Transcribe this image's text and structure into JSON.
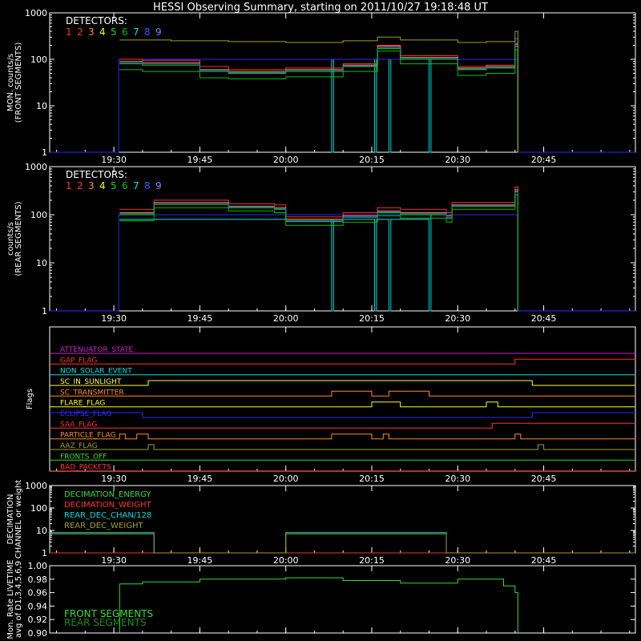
{
  "title": "HESSI Observing Summary, starting on 2011/10/27 19:18:48 UT",
  "colors": {
    "background": "#000000",
    "axes": "#ffffff",
    "det": [
      "#ff3030",
      "#ff3030",
      "#ff8c1a",
      "#ffff00",
      "#20d020",
      "#00c000",
      "#00e0e0",
      "#2060ff",
      "#8080ff"
    ],
    "front_segments": "#33dd33",
    "rear_segments": "#1c8c1c",
    "trace_green": "#33dd33",
    "trace_cyan": "#00dddd",
    "trace_blue": "#2a2aff",
    "trace_olive": "#a0a020"
  },
  "chart_data": [
    {
      "id": "front",
      "type": "line",
      "ylabel": [
        "MON. counts/s",
        "(FRONT SEGMENTS)"
      ],
      "ylog": true,
      "ylim": [
        1,
        1000
      ],
      "yticks": [
        "1",
        "10",
        "100",
        "1000"
      ],
      "xticks": [
        "19:30",
        "19:45",
        "20:00",
        "20:15",
        "20:30",
        "20:45"
      ],
      "xlim": [
        "19:18:48",
        "21:01"
      ],
      "legend_title": "DETECTORS:",
      "legend_digits": [
        "1",
        "2",
        "3",
        "4",
        "5",
        "6",
        "7",
        "8",
        "9"
      ],
      "series": [
        {
          "key": "d1",
          "color_index": 0,
          "x": [
            "19:31",
            "19:35",
            "19:45",
            "19:50",
            "20:00",
            "20:10",
            "20:16",
            "20:20",
            "20:30",
            "20:35",
            "20:40",
            "20:40:30"
          ],
          "y": [
            100,
            95,
            70,
            60,
            65,
            80,
            200,
            120,
            70,
            75,
            220,
            1
          ]
        },
        {
          "key": "d3",
          "color_index": 2,
          "x": [
            "19:31",
            "19:35",
            "19:45",
            "19:50",
            "20:00",
            "20:10",
            "20:16",
            "20:20",
            "20:30",
            "20:35",
            "20:40",
            "20:40:30"
          ],
          "y": [
            90,
            85,
            60,
            55,
            60,
            75,
            190,
            110,
            65,
            70,
            210,
            1
          ]
        },
        {
          "key": "d5",
          "color_index": 4,
          "x": [
            "19:31",
            "19:35",
            "19:45",
            "19:50",
            "20:00",
            "20:10",
            "20:16",
            "20:20",
            "20:30",
            "20:35",
            "20:40",
            "20:40:30"
          ],
          "y": [
            80,
            75,
            55,
            50,
            55,
            70,
            170,
            100,
            60,
            65,
            190,
            1
          ]
        },
        {
          "key": "d8",
          "color_index": 7,
          "x": [
            "19:31",
            "19:35",
            "19:45",
            "19:50",
            "20:00",
            "20:10",
            "20:16",
            "20:20",
            "20:30",
            "20:35",
            "20:40",
            "20:40:30"
          ],
          "y": [
            85,
            80,
            58,
            52,
            58,
            72,
            180,
            105,
            62,
            68,
            280,
            1
          ]
        },
        {
          "key": "d2",
          "color_index": 5,
          "x": [
            "19:31",
            "19:35",
            "19:45",
            "19:50",
            "20:00",
            "20:10",
            "20:16",
            "20:20",
            "20:30",
            "20:35",
            "20:40",
            "20:40:30"
          ],
          "y": [
            60,
            55,
            40,
            38,
            42,
            55,
            150,
            80,
            45,
            50,
            160,
            1
          ]
        },
        {
          "key": "total",
          "color": "trace_olive",
          "x": [
            "19:31",
            "19:40",
            "19:50",
            "20:00",
            "20:10",
            "20:16",
            "20:20",
            "20:30",
            "20:35",
            "20:40",
            "20:40:30"
          ],
          "y": [
            260,
            250,
            240,
            230,
            250,
            300,
            260,
            230,
            240,
            400,
            1
          ]
        }
      ],
      "dropouts": [
        {
          "color": "trace_cyan",
          "x": [
            "19:31",
            "20:08",
            "20:08",
            "20:08:20",
            "20:08:20",
            "20:15:30",
            "20:15:30",
            "20:15:50",
            "20:15:50",
            "20:18",
            "20:18",
            "20:18:20",
            "20:18:20",
            "20:25",
            "20:25",
            "20:25:20",
            "20:25:20",
            "20:40:30"
          ],
          "y": [
            100,
            100,
            1,
            1,
            100,
            100,
            1,
            1,
            100,
            100,
            1,
            1,
            100,
            100,
            1,
            1,
            100,
            1
          ]
        },
        {
          "color": "trace_blue",
          "x": [
            "19:18:48",
            "19:30:50",
            "19:30:50",
            "19:31",
            "20:40:30",
            "20:40:30",
            "21:01"
          ],
          "y": [
            1,
            1,
            100,
            100,
            100,
            1,
            1
          ]
        }
      ]
    },
    {
      "id": "rear",
      "type": "line",
      "ylabel": [
        "counts/s",
        "(REAR SEGMENTS)"
      ],
      "ylog": true,
      "ylim": [
        1,
        1000
      ],
      "yticks": [
        "1",
        "10",
        "100",
        "1000"
      ],
      "xticks": [
        "19:30",
        "19:45",
        "20:00",
        "20:15",
        "20:30",
        "20:45"
      ],
      "xlim": [
        "19:18:48",
        "21:01"
      ],
      "legend_title": "DETECTORS:",
      "legend_digits": [
        "1",
        "2",
        "3",
        "4",
        "5",
        "6",
        "7",
        "8",
        "9"
      ],
      "series": [
        {
          "key": "d1",
          "color_index": 0,
          "x": [
            "19:31",
            "19:36",
            "19:37",
            "19:50",
            "19:58",
            "20:00",
            "20:10",
            "20:16",
            "20:20",
            "20:28",
            "20:29",
            "20:35",
            "20:40",
            "20:40:30"
          ],
          "y": [
            130,
            130,
            200,
            170,
            160,
            90,
            110,
            140,
            130,
            110,
            180,
            180,
            380,
            1
          ]
        },
        {
          "key": "d3",
          "color_index": 2,
          "x": [
            "19:31",
            "19:36",
            "19:37",
            "19:50",
            "19:58",
            "20:00",
            "20:10",
            "20:16",
            "20:20",
            "20:28",
            "20:29",
            "20:35",
            "20:40",
            "20:40:30"
          ],
          "y": [
            110,
            110,
            180,
            150,
            140,
            80,
            95,
            120,
            110,
            95,
            160,
            160,
            330,
            1
          ]
        },
        {
          "key": "d5",
          "color_index": 4,
          "x": [
            "19:31",
            "19:36",
            "19:37",
            "19:50",
            "19:58",
            "20:00",
            "20:10",
            "20:16",
            "20:20",
            "20:28",
            "20:29",
            "20:35",
            "20:40",
            "20:40:30"
          ],
          "y": [
            100,
            100,
            165,
            140,
            130,
            72,
            88,
            110,
            100,
            85,
            150,
            150,
            300,
            1
          ]
        },
        {
          "key": "d8",
          "color_index": 7,
          "x": [
            "19:31",
            "19:36",
            "19:37",
            "19:50",
            "19:58",
            "20:00",
            "20:10",
            "20:16",
            "20:20",
            "20:28",
            "20:29",
            "20:35",
            "20:40",
            "20:40:30"
          ],
          "y": [
            105,
            105,
            170,
            145,
            135,
            75,
            90,
            115,
            105,
            88,
            155,
            155,
            310,
            1
          ]
        },
        {
          "key": "d2",
          "color_index": 5,
          "x": [
            "19:31",
            "19:36",
            "19:37",
            "19:50",
            "19:58",
            "20:00",
            "20:10",
            "20:16",
            "20:20",
            "20:28",
            "20:29",
            "20:35",
            "20:40",
            "20:40:30"
          ],
          "y": [
            75,
            75,
            140,
            120,
            110,
            60,
            70,
            95,
            85,
            70,
            130,
            130,
            260,
            1
          ]
        }
      ],
      "dropouts": [
        {
          "color": "trace_cyan",
          "x": [
            "19:31",
            "20:08",
            "20:08",
            "20:08:20",
            "20:08:20",
            "20:15:30",
            "20:15:30",
            "20:15:50",
            "20:15:50",
            "20:18",
            "20:18",
            "20:18:20",
            "20:18:20",
            "20:25",
            "20:25",
            "20:25:20",
            "20:25:20",
            "20:40:30"
          ],
          "y": [
            80,
            80,
            1,
            1,
            80,
            80,
            1,
            1,
            80,
            80,
            1,
            1,
            80,
            80,
            1,
            1,
            100,
            1
          ]
        },
        {
          "color": "trace_blue",
          "x": [
            "19:18:48",
            "19:30:50",
            "19:30:50",
            "19:31",
            "20:40:30",
            "20:40:30",
            "21:01"
          ],
          "y": [
            1,
            1,
            100,
            100,
            100,
            1,
            1
          ]
        }
      ]
    },
    {
      "id": "flags",
      "type": "line",
      "ylabel": [
        "Flags"
      ],
      "xticks": [
        "19:30",
        "19:45",
        "20:00",
        "20:15",
        "20:30",
        "20:45"
      ],
      "xlim": [
        "19:18:48",
        "21:01"
      ],
      "series": [
        {
          "label": "ATTENUATOR_STATE",
          "color": "#d020d0",
          "x": [
            "19:18:48",
            "21:01"
          ],
          "y": [
            0,
            0
          ]
        },
        {
          "label": "GAP_FLAG",
          "color": "#ff3030",
          "x": [
            "19:18:48",
            "20:40",
            "20:40",
            "21:01"
          ],
          "y": [
            0,
            0,
            1,
            1
          ]
        },
        {
          "label": "NON_SOLAR_EVENT",
          "color": "#00dddd",
          "x": [
            "19:18:48",
            "21:01"
          ],
          "y": [
            0,
            0
          ]
        },
        {
          "label": "SC_IN_SUNLIGHT",
          "color": "#ffff30",
          "x": [
            "19:18:48",
            "19:36",
            "19:36",
            "20:43",
            "20:43",
            "21:01"
          ],
          "y": [
            0,
            0,
            1,
            1,
            0,
            0
          ]
        },
        {
          "label": "SC_TRANSMITTER",
          "color": "#ff8c1a",
          "x": [
            "19:18:48",
            "20:08",
            "20:08",
            "20:15",
            "20:15",
            "20:18",
            "20:18",
            "20:25",
            "20:25",
            "21:01"
          ],
          "y": [
            0,
            0,
            1,
            1,
            0,
            0,
            1,
            1,
            0,
            0
          ]
        },
        {
          "label": "FLARE_FLAG",
          "color": "#ffff00",
          "x": [
            "19:18:48",
            "20:15",
            "20:15",
            "20:20",
            "20:20",
            "20:35",
            "20:35",
            "20:37",
            "20:37",
            "21:01"
          ],
          "y": [
            0,
            0,
            1,
            1,
            0,
            0,
            1,
            1,
            0,
            0
          ]
        },
        {
          "label": "ECLIPSE_FLAG",
          "color": "#2a2aff",
          "x": [
            "19:18:48",
            "19:35",
            "19:35",
            "20:43",
            "20:43",
            "21:01"
          ],
          "y": [
            1,
            1,
            0,
            0,
            1,
            1
          ]
        },
        {
          "label": "SAA_FLAG",
          "color": "#ff3030",
          "x": [
            "19:18:48",
            "20:36",
            "20:36",
            "21:01"
          ],
          "y": [
            0,
            0,
            1,
            1
          ]
        },
        {
          "label": "PARTICLE_FLAG",
          "color": "#ff8c1a",
          "x": [
            "19:18:48",
            "19:31",
            "19:31",
            "19:32",
            "19:32",
            "19:34",
            "19:34",
            "19:36",
            "19:36",
            "20:08",
            "20:08",
            "20:15",
            "20:15",
            "20:17",
            "20:17",
            "20:18",
            "20:18",
            "20:40",
            "20:40",
            "20:41",
            "20:41",
            "21:01"
          ],
          "y": [
            0,
            0,
            1,
            1,
            0,
            0,
            1,
            1,
            0,
            0,
            1,
            1,
            0,
            0,
            1,
            1,
            0,
            0,
            1,
            1,
            0,
            0
          ]
        },
        {
          "label": "AAZ_FLAG",
          "color": "#a0a020",
          "x": [
            "19:18:48",
            "19:36",
            "19:36",
            "19:37",
            "19:37",
            "20:44",
            "20:44",
            "20:45",
            "20:45",
            "21:01"
          ],
          "y": [
            0,
            0,
            1,
            1,
            0,
            0,
            1,
            1,
            0,
            0
          ]
        },
        {
          "label": "FRONTS_OFF",
          "color": "#33dd33",
          "x": [
            "19:18:48",
            "21:01"
          ],
          "y": [
            0,
            0
          ]
        },
        {
          "label": "BAD_PACKETS",
          "color": "#ff3030",
          "x": [
            "19:18:48",
            "21:01"
          ],
          "y": [
            0,
            0
          ]
        }
      ]
    },
    {
      "id": "decimation",
      "type": "line",
      "ylabel": [
        "DECIMATION",
        "CHANNEL or weight"
      ],
      "ylog": true,
      "ylim": [
        1,
        1000
      ],
      "yticks": [
        "1",
        "10",
        "100",
        "1000"
      ],
      "xticks": [
        "19:30",
        "19:45",
        "20:00",
        "20:15",
        "20:30",
        "20:45"
      ],
      "xlim": [
        "19:18:48",
        "21:01"
      ],
      "series": [
        {
          "label": "DECIMATION_ENERGY",
          "color": "#33dd33",
          "x": [
            "19:18:48",
            "21:01"
          ],
          "y": [
            1,
            1
          ]
        },
        {
          "label": "DECIMATION_WEIGHT",
          "color": "#ff3030",
          "x": [
            "19:18:48",
            "21:01"
          ],
          "y": [
            1,
            1
          ]
        },
        {
          "label": "REAR_DEC_CHAN/128",
          "color": "#00dddd",
          "x": [
            "19:18:48",
            "19:37",
            "19:37",
            "20:00",
            "20:00",
            "20:28",
            "20:28",
            "21:01"
          ],
          "y": [
            8,
            8,
            1,
            1,
            8,
            8,
            1,
            1
          ]
        },
        {
          "label": "REAR_DEC_WEIGHT",
          "color": "#a0a020",
          "x": [
            "19:18:48",
            "19:37",
            "19:37",
            "20:00",
            "20:00",
            "20:28",
            "20:28",
            "21:01"
          ],
          "y": [
            7,
            7,
            1,
            1,
            7,
            7,
            1,
            1
          ]
        }
      ]
    },
    {
      "id": "livetime",
      "type": "line",
      "ylabel": [
        "Mon. Rate LIVETIME",
        "avg of D1,3,4,5,6,9"
      ],
      "ylim": [
        0.9,
        1.0
      ],
      "yticks": [
        "0.90",
        "0.92",
        "0.94",
        "0.96",
        "0.98",
        "1.00"
      ],
      "xlim": [
        "19:18:48",
        "21:01"
      ],
      "legend": [
        "FRONT SEGMENTS",
        "REAR SEGMENTS"
      ],
      "series": [
        {
          "label": "FRONT SEGMENTS",
          "color": "#33dd33",
          "x": [
            "19:31",
            "19:35",
            "19:45",
            "20:00",
            "20:10",
            "20:20",
            "20:30",
            "20:35",
            "20:38",
            "20:40",
            "20:40:30"
          ],
          "y": [
            0.973,
            0.976,
            0.98,
            0.982,
            0.978,
            0.974,
            0.98,
            0.98,
            0.97,
            0.96,
            0.958
          ]
        }
      ]
    }
  ]
}
